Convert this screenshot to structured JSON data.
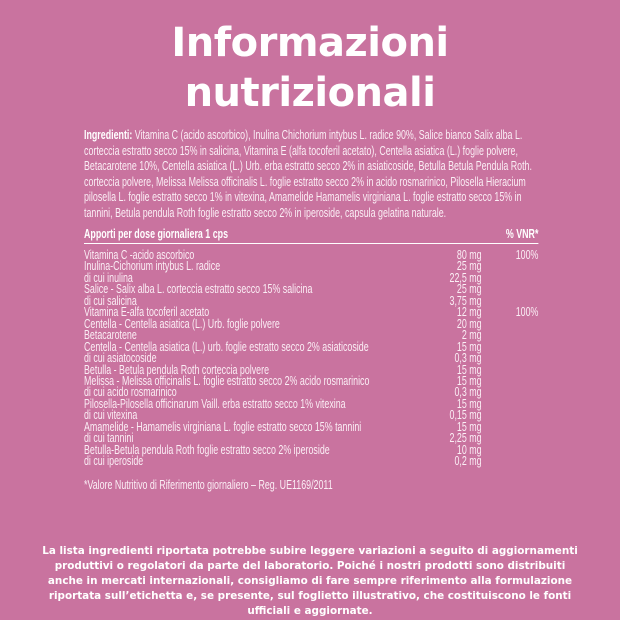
{
  "title": [
    "Informazioni",
    "nutrizionali"
  ],
  "ingredients": {
    "label": "Ingredienti:",
    "text": " Vitamina C (acido ascorbico), Inulina Chichorium intybus L. radice 90%, Salice bianco Salix alba L. corteccia estratto secco 15% in salicina, Vitamina E (alfa tocoferil acetato), Centella asiatica (L.) foglie polvere, Betacarotene 10%, Centella asiatica (L.) Urb. erba estratto secco 2% in asiaticoside, Betulla Betula Pendula Roth. corteccia polvere, Melissa Melissa officinalis L. foglie estratto secco 2% in acido rosmarinico, Pilosella Hieracium pilosella L. foglie estratto secco 1% in vitexina, Amamelide Hamamelis virginiana L. foglie estratto secco 15% in tannini, Betula pendula Roth foglie estratto secco 2% in iperoside, capsula gelatina naturale."
  },
  "table": {
    "header": [
      "Apporti per dose giornaliera 1 cps",
      "",
      "% VNR*"
    ],
    "rows": [
      [
        "Vitamina C -acido ascorbico",
        "80 mg",
        "100%"
      ],
      [
        "Inulina-Cichorium intybus L. radice",
        "25 mg",
        ""
      ],
      [
        "di cui inulina",
        "22,5 mg",
        ""
      ],
      [
        "Salice - Salix alba L. corteccia estratto secco 15% salicina",
        "25 mg",
        ""
      ],
      [
        "di cui salicina",
        "3,75 mg",
        ""
      ],
      [
        "Vitamina E-alfa tocoferil acetato",
        "12 mg",
        "100%"
      ],
      [
        "Centella - Centella asiatica (L.) Urb. foglie polvere",
        "20 mg",
        ""
      ],
      [
        "Betacarotene",
        "2 mg",
        ""
      ],
      [
        "Centella - Centella asiatica (L.) urb. foglie estratto secco 2% asiaticoside",
        "15 mg",
        ""
      ],
      [
        "di cui asiatocoside",
        "0,3 mg",
        ""
      ],
      [
        "Betulla - Betula pendula Roth corteccia polvere",
        "15 mg",
        ""
      ],
      [
        "Melissa - Melissa officinalis L. foglie estratto secco 2% acido rosmarinico",
        "15 mg",
        ""
      ],
      [
        "di cui acido rosmarinico",
        "0,3 mg",
        ""
      ],
      [
        "Pilosella-Pilosella officinarum Vaill. erba estratto secco 1% vitexina",
        "15 mg",
        ""
      ],
      [
        "di cui vitexina",
        "0,15 mg",
        ""
      ],
      [
        "Amamelide - Hamamelis virginiana L. foglie estratto secco 15% tannini",
        "15 mg",
        ""
      ],
      [
        "di cui tannini",
        "2,25 mg",
        ""
      ],
      [
        "Betulla-Betula pendula Roth foglie estratto secco 2% iperoside",
        "10 mg",
        ""
      ],
      [
        "di cui iperoside",
        "0,2 mg",
        ""
      ]
    ]
  },
  "footnote": "*Valore Nutritivo di Riferimento giornaliero – Reg. UE1169/2011",
  "disclaimer": "La lista ingredienti riportata potrebbe subire leggere variazioni a seguito di aggiornamenti produttivi o regolatori da parte del laboratorio. Poiché i nostri prodotti sono distribuiti anche in mercati internazionali, consigliamo di fare sempre riferimento alla formulazione riportata sull’etichetta e, se presente, sul foglietto illustrativo, che costituiscono le fonti ufficiali e aggiornate.",
  "colors": {
    "background": "#c9739f",
    "text": "#ffffff"
  }
}
